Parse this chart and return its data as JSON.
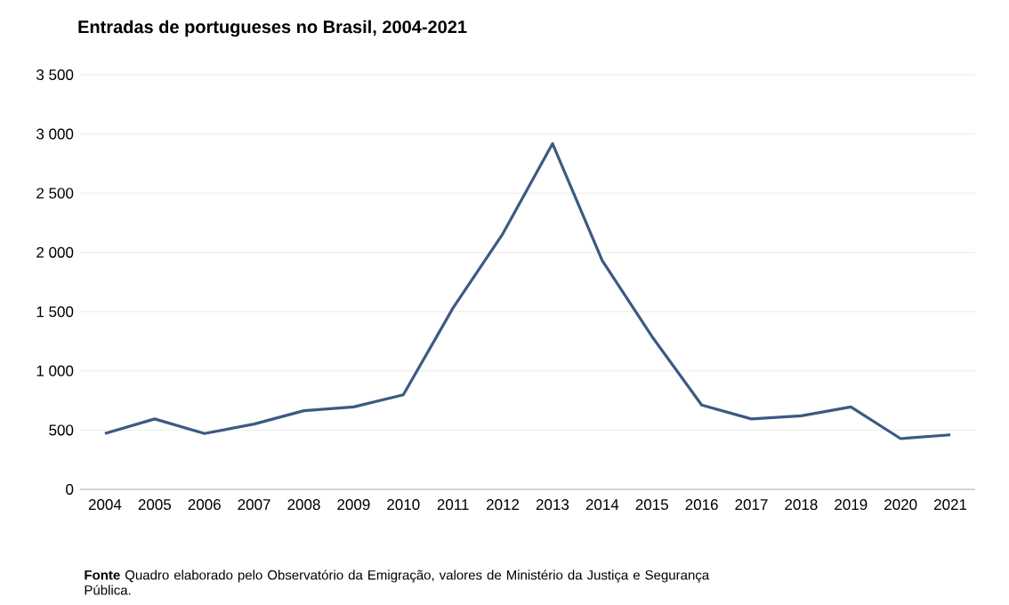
{
  "chart_data": {
    "type": "line",
    "title": "Entradas de portugueses no Brasil, 2004-2021",
    "categories": [
      "2004",
      "2005",
      "2006",
      "2007",
      "2008",
      "2009",
      "2010",
      "2011",
      "2012",
      "2013",
      "2014",
      "2015",
      "2016",
      "2017",
      "2018",
      "2019",
      "2020",
      "2021"
    ],
    "values": [
      471,
      594,
      471,
      551,
      664,
      696,
      798,
      1531,
      2157,
      2918,
      1932,
      1290,
      712,
      594,
      621,
      696,
      428,
      460
    ],
    "color": "#3c5a82",
    "ylim": [
      0,
      3500
    ],
    "yticks": [
      0,
      500,
      {
        "value": 1000,
        "label": "1 000"
      },
      {
        "value": 1500,
        "label": "1 500"
      },
      {
        "value": 2000,
        "label": "2 000"
      },
      {
        "value": 2500,
        "label": "2 500"
      },
      {
        "value": 3000,
        "label": "3 000"
      },
      {
        "value": 3500,
        "label": "3 500"
      }
    ],
    "grid": "y",
    "annotations": [
      "**Fonte** Quadro elaborado pelo Observatório da Emigração, valores de Ministério da Justiça e Segurança Pública."
    ]
  }
}
